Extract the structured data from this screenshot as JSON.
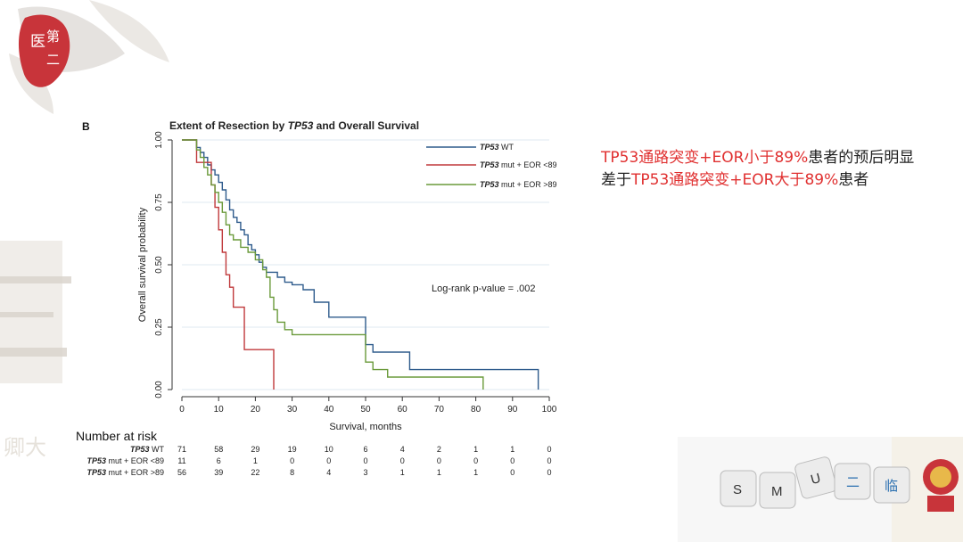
{
  "panel_letter": "B",
  "logo_text": "医第二",
  "annotation": {
    "p1_red": "TP53通路突变+EOR小于89%",
    "p2": "患者的预后明显差于",
    "p3_red": "TP53通路突变+EOR大于89%",
    "p4": "患者"
  },
  "keycaps": [
    "S",
    "M",
    "U",
    "二",
    "临"
  ],
  "chart_data": {
    "type": "line",
    "title_prefix": "Extent of Resection by ",
    "title_gene": "TP53",
    "title_suffix": " and Overall Survival",
    "xlabel": "Survival, months",
    "ylabel": "Overall survival probability",
    "xlim": [
      0,
      100
    ],
    "ylim": [
      0,
      1
    ],
    "x_ticks": [
      "0",
      "10",
      "20",
      "30",
      "40",
      "50",
      "60",
      "70",
      "80",
      "90",
      "100"
    ],
    "y_ticks": [
      "0.00",
      "0.25",
      "0.50",
      "0.75",
      "1.00"
    ],
    "grid": true,
    "legend_position": "top-right",
    "pvalue_text": "Log-rank p-value = .002",
    "series": [
      {
        "name_gene": "TP53",
        "name_rest": " WT",
        "color": "#2e5b8c",
        "x": [
          0,
          2,
          4,
          5,
          6,
          7,
          8,
          9,
          10,
          11,
          12,
          13,
          14,
          15,
          16,
          17,
          18,
          19,
          20,
          21,
          22,
          23,
          24,
          26,
          28,
          30,
          33,
          36,
          40,
          48,
          50,
          52,
          62,
          97
        ],
        "y": [
          1.0,
          1.0,
          0.97,
          0.95,
          0.93,
          0.9,
          0.88,
          0.86,
          0.83,
          0.8,
          0.76,
          0.72,
          0.69,
          0.67,
          0.64,
          0.62,
          0.58,
          0.56,
          0.54,
          0.51,
          0.49,
          0.47,
          0.47,
          0.45,
          0.43,
          0.42,
          0.4,
          0.35,
          0.29,
          0.29,
          0.18,
          0.15,
          0.08,
          0.0
        ]
      },
      {
        "name_gene": "TP53",
        "name_rest": " mut + EOR <89",
        "color": "#c0393b",
        "x": [
          0,
          2,
          4,
          7,
          8,
          9,
          10,
          11,
          12,
          13,
          14,
          17,
          20,
          24,
          25
        ],
        "y": [
          1.0,
          1.0,
          0.91,
          0.91,
          0.82,
          0.73,
          0.64,
          0.55,
          0.46,
          0.41,
          0.33,
          0.16,
          0.16,
          0.16,
          0.0
        ]
      },
      {
        "name_gene": "TP53",
        "name_rest": " mut + EOR >89",
        "color": "#6a9a3a",
        "x": [
          0,
          2,
          4,
          5,
          6,
          7,
          8,
          9,
          10,
          11,
          12,
          13,
          14,
          16,
          18,
          20,
          22,
          23,
          24,
          25,
          26,
          28,
          30,
          50,
          52,
          56,
          82
        ],
        "y": [
          1.0,
          1.0,
          0.96,
          0.93,
          0.89,
          0.86,
          0.82,
          0.79,
          0.75,
          0.71,
          0.66,
          0.62,
          0.6,
          0.57,
          0.55,
          0.52,
          0.48,
          0.45,
          0.37,
          0.32,
          0.27,
          0.24,
          0.22,
          0.11,
          0.08,
          0.05,
          0.0
        ]
      }
    ],
    "risk_table": {
      "header": "Number at risk",
      "times": [
        0,
        10,
        20,
        30,
        40,
        50,
        60,
        70,
        80,
        90,
        100
      ],
      "rows": [
        {
          "label_gene": "TP53",
          "label_rest": " WT",
          "values": [
            71,
            58,
            29,
            19,
            10,
            6,
            4,
            2,
            1,
            1,
            0
          ]
        },
        {
          "label_gene": "TP53",
          "label_rest": " mut + EOR <89",
          "values": [
            11,
            6,
            1,
            0,
            0,
            0,
            0,
            0,
            0,
            0,
            0
          ]
        },
        {
          "label_gene": "TP53",
          "label_rest": " mut + EOR >89",
          "values": [
            56,
            39,
            22,
            8,
            4,
            3,
            1,
            1,
            1,
            0,
            0
          ]
        }
      ]
    }
  }
}
